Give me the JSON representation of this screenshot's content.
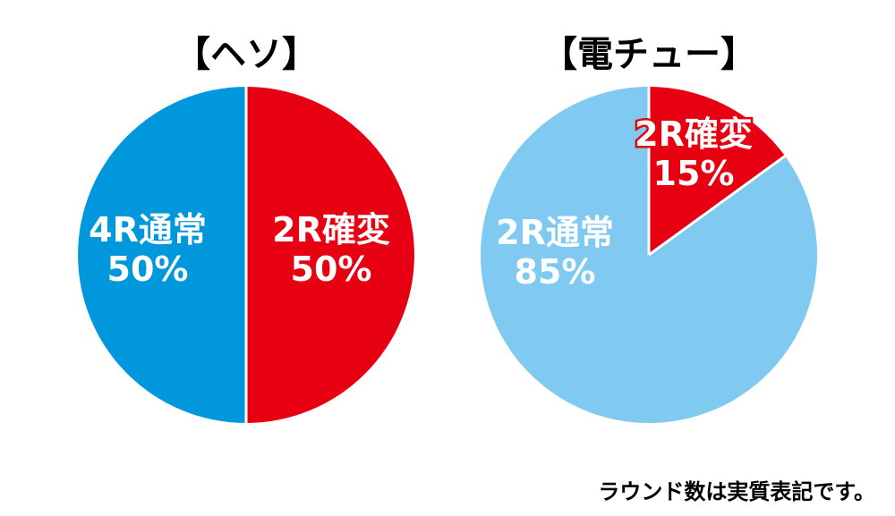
{
  "footnote": "ラウンド数は実質表記です。",
  "chart_data": [
    {
      "type": "pie",
      "title": "【ヘソ】",
      "slices": [
        {
          "label": "2R確変",
          "percent_label": "50%",
          "value": 50,
          "color": "#e60012"
        },
        {
          "label": "4R通常",
          "percent_label": "50%",
          "value": 50,
          "color": "#0097dd"
        }
      ],
      "start": "12 o'clock",
      "direction": "clockwise"
    },
    {
      "type": "pie",
      "title": "【電チュー】",
      "slices": [
        {
          "label": "2R確変",
          "percent_label": "15%",
          "value": 15,
          "color": "#e60012"
        },
        {
          "label": "2R通常",
          "percent_label": "85%",
          "value": 85,
          "color": "#80c9f0"
        }
      ],
      "start": "12 o'clock",
      "direction": "clockwise"
    }
  ]
}
